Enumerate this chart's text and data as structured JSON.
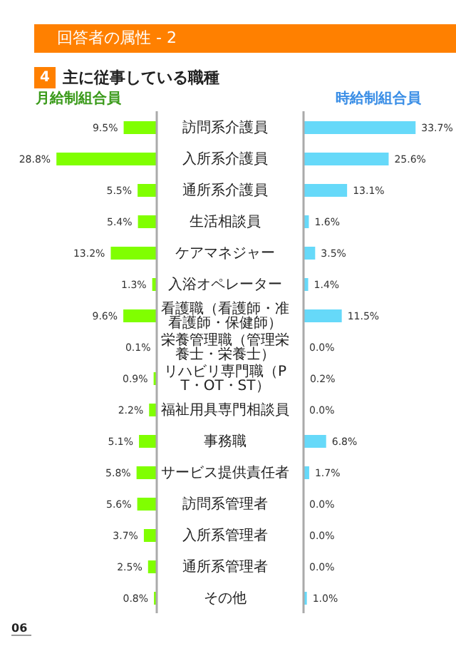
{
  "chart_data": [
    {
      "type": "bar",
      "orientation": "horizontal",
      "title": "月給制組合員",
      "annotations": [
        "回答者の属性 - 2",
        "4",
        "主に従事している職種",
        "06"
      ],
      "categories": [
        "訪問系介護員",
        "入所系介護員",
        "通所系介護員",
        "生活相談員",
        "ケアマネジャー",
        "入浴オペレーター",
        "看護職（看護師・准看護師・保健師）",
        "栄養管理職（管理栄養士・栄養士）",
        "リハビリ専門職（PT・OT・ST）",
        "福祉用具専門相談員",
        "事務職",
        "サービス提供責任者",
        "訪問系管理者",
        "入所系管理者",
        "通所系管理者",
        "その他"
      ],
      "values": [
        9.5,
        28.8,
        5.5,
        5.4,
        13.2,
        1.3,
        9.6,
        0.1,
        0.9,
        2.2,
        5.1,
        5.8,
        5.6,
        3.7,
        2.5,
        0.8
      ],
      "value_labels": [
        "9.5%",
        "28.8%",
        "5.5%",
        "5.4%",
        "13.2%",
        "1.3%",
        "9.6%",
        "0.1%",
        "0.9%",
        "2.2%",
        "5.1%",
        "5.8%",
        "5.6%",
        "3.7%",
        "2.5%",
        "0.8%"
      ],
      "color": "#80ff00",
      "xlim": [
        45,
        0
      ],
      "tick_labels": "y"
    },
    {
      "type": "bar",
      "orientation": "horizontal",
      "title": "時給制組合員",
      "categories": [
        "訪問系介護員",
        "入所系介護員",
        "通所系介護員",
        "生活相談員",
        "ケアマネジャー",
        "入浴オペレーター",
        "看護職（看護師・准看護師・保健師）",
        "栄養管理職（管理栄養士・栄養士）",
        "リハビリ専門職（PT・OT・ST）",
        "福祉用具専門相談員",
        "事務職",
        "サービス提供責任者",
        "訪問系管理者",
        "入所系管理者",
        "通所系管理者",
        "その他"
      ],
      "values": [
        33.7,
        25.6,
        13.1,
        1.6,
        3.5,
        1.4,
        11.5,
        0.0,
        0.2,
        0.0,
        6.8,
        1.7,
        0.0,
        0.0,
        0.0,
        1.0
      ],
      "value_labels": [
        "33.7%",
        "25.6%",
        "13.1%",
        "1.6%",
        "3.5%",
        "1.4%",
        "11.5%",
        "0.0%",
        "0.2%",
        "0.0%",
        "6.8%",
        "1.7%",
        "0.0%",
        "0.0%",
        "0.0%",
        "1.0%"
      ],
      "color": "#66d9f9",
      "xlim": [
        0,
        45
      ],
      "tick_labels": false
    }
  ]
}
